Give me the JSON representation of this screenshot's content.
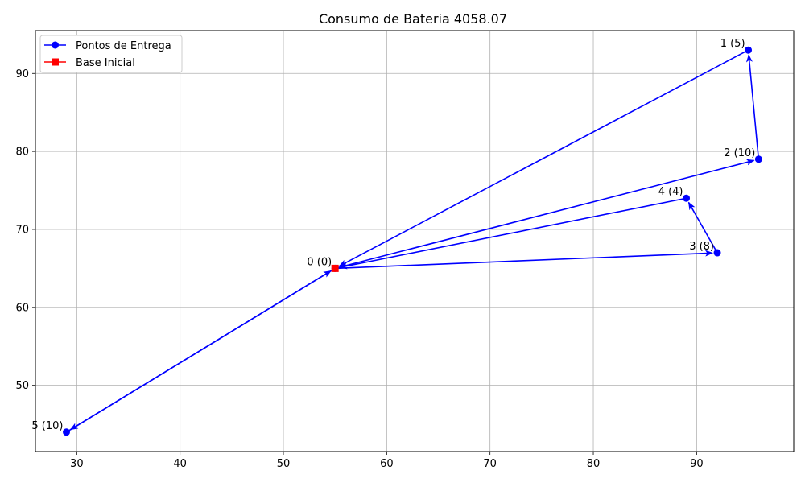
{
  "chart_data": {
    "type": "scatter",
    "title": "Consumo de Bateria 4058.07",
    "xlabel": "",
    "ylabel": "",
    "xlim": [
      26,
      99.4
    ],
    "ylim": [
      41.5,
      95.5
    ],
    "xticks": [
      30,
      40,
      50,
      60,
      70,
      80,
      90
    ],
    "yticks": [
      50,
      60,
      70,
      80,
      90
    ],
    "grid": true,
    "legend_position": "top-left",
    "series": [
      {
        "name": "Pontos de Entrega",
        "color": "#0000ff",
        "marker": "circle",
        "points": [
          {
            "x": 55,
            "y": 65,
            "label": "0 (0)"
          },
          {
            "x": 95,
            "y": 93,
            "label": "1 (5)"
          },
          {
            "x": 96,
            "y": 79,
            "label": "2 (10)"
          },
          {
            "x": 92,
            "y": 67,
            "label": "3 (8)"
          },
          {
            "x": 89,
            "y": 74,
            "label": "4 (4)"
          },
          {
            "x": 29,
            "y": 44,
            "label": "5 (10)"
          }
        ]
      },
      {
        "name": "Base Inicial",
        "color": "#ff0000",
        "marker": "square",
        "points": [
          {
            "x": 55,
            "y": 65
          }
        ]
      }
    ],
    "route": [
      [
        0,
        3
      ],
      [
        3,
        4
      ],
      [
        4,
        0
      ],
      [
        0,
        2
      ],
      [
        2,
        1
      ],
      [
        1,
        0
      ],
      [
        0,
        5
      ],
      [
        5,
        0
      ]
    ],
    "route_color": "#0000ff"
  }
}
